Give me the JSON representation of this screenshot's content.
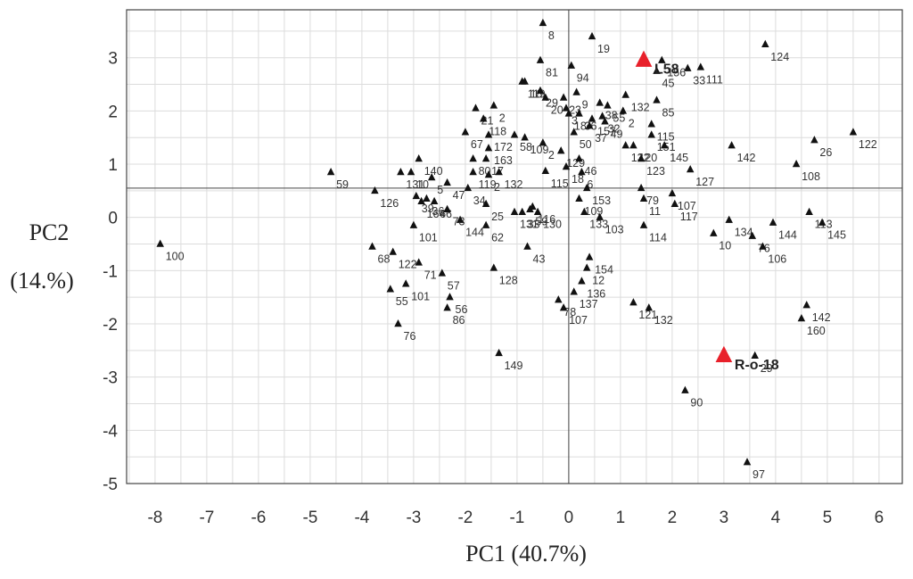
{
  "chart_data": {
    "type": "scatter",
    "title": "",
    "xlabel": "PC1 (40.7%)",
    "ylabel_line1": "PC2",
    "ylabel_line2": "(14.%)",
    "xlim": [
      -8.55,
      6.45
    ],
    "ylim": [
      -5.0,
      3.9
    ],
    "xticks": [
      "-8",
      "-7",
      "-6",
      "-5",
      "-4",
      "-3",
      "-2",
      "-1",
      "0",
      "1",
      "2",
      "3",
      "4",
      "5",
      "6"
    ],
    "yticks": [
      "3",
      "2",
      "1",
      "0",
      "-1",
      "-2",
      "-3",
      "-4",
      "-5"
    ],
    "grid": true,
    "colors": {
      "point": "#111111",
      "highlight": "#e8202a",
      "grid": "#dcdcdc",
      "axis": "#444444"
    },
    "highlighted": [
      {
        "label": "L58",
        "x": 1.45,
        "y": 2.95
      },
      {
        "label": "R-o-18",
        "x": 3.0,
        "y": -2.6
      }
    ],
    "points": [
      {
        "label": "8",
        "x": -0.5,
        "y": 3.65
      },
      {
        "label": "19",
        "x": 0.45,
        "y": 3.4
      },
      {
        "label": "124",
        "x": 3.8,
        "y": 3.25
      },
      {
        "label": "81",
        "x": -0.55,
        "y": 2.95
      },
      {
        "label": "94",
        "x": 0.05,
        "y": 2.85
      },
      {
        "label": "156",
        "x": 1.8,
        "y": 2.95
      },
      {
        "label": "45",
        "x": 1.7,
        "y": 2.75
      },
      {
        "label": "33",
        "x": 2.3,
        "y": 2.8
      },
      {
        "label": "111",
        "x": 2.55,
        "y": 2.82
      },
      {
        "label": "119",
        "x": -0.9,
        "y": 2.55
      },
      {
        "label": "18",
        "x": -0.85,
        "y": 2.55
      },
      {
        "label": "29",
        "x": -0.55,
        "y": 2.38
      },
      {
        "label": "20",
        "x": -0.45,
        "y": 2.25
      },
      {
        "label": "23",
        "x": -0.1,
        "y": 2.25
      },
      {
        "label": "9",
        "x": 0.15,
        "y": 2.35
      },
      {
        "label": "132",
        "x": 1.1,
        "y": 2.3
      },
      {
        "label": "85",
        "x": 1.7,
        "y": 2.2
      },
      {
        "label": "3",
        "x": -0.05,
        "y": 2.05
      },
      {
        "label": "38",
        "x": 0.6,
        "y": 2.15
      },
      {
        "label": "55",
        "x": 0.75,
        "y": 2.1
      },
      {
        "label": "32",
        "x": 0.65,
        "y": 1.9
      },
      {
        "label": "2",
        "x": 1.05,
        "y": 2.0
      },
      {
        "label": "115",
        "x": 1.6,
        "y": 1.75
      },
      {
        "label": "21",
        "x": -1.8,
        "y": 2.05
      },
      {
        "label": "2",
        "x": -1.45,
        "y": 2.1
      },
      {
        "label": "118",
        "x": -1.65,
        "y": 1.85
      },
      {
        "label": "18",
        "x": 0.0,
        "y": 1.95
      },
      {
        "label": "36",
        "x": 0.2,
        "y": 1.95
      },
      {
        "label": "157",
        "x": 0.45,
        "y": 1.85
      },
      {
        "label": "49",
        "x": 0.7,
        "y": 1.8
      },
      {
        "label": "37",
        "x": 0.4,
        "y": 1.72
      },
      {
        "label": "50",
        "x": 0.1,
        "y": 1.6
      },
      {
        "label": "67",
        "x": -2.0,
        "y": 1.6
      },
      {
        "label": "172",
        "x": -1.55,
        "y": 1.55
      },
      {
        "label": "58",
        "x": -1.05,
        "y": 1.55
      },
      {
        "label": "109",
        "x": -0.85,
        "y": 1.5
      },
      {
        "label": "2",
        "x": -0.5,
        "y": 1.4
      },
      {
        "label": "129",
        "x": -0.15,
        "y": 1.25
      },
      {
        "label": "151",
        "x": 1.6,
        "y": 1.55
      },
      {
        "label": "145",
        "x": 1.85,
        "y": 1.35
      },
      {
        "label": "132",
        "x": 1.1,
        "y": 1.35
      },
      {
        "label": "120",
        "x": 1.25,
        "y": 1.35
      },
      {
        "label": "163",
        "x": -1.55,
        "y": 1.3
      },
      {
        "label": "80",
        "x": -1.85,
        "y": 1.1
      },
      {
        "label": "17",
        "x": -1.6,
        "y": 1.1
      },
      {
        "label": "123",
        "x": 1.4,
        "y": 1.1
      },
      {
        "label": "46",
        "x": 0.2,
        "y": 1.1
      },
      {
        "label": "142",
        "x": 3.15,
        "y": 1.35
      },
      {
        "label": "26",
        "x": 4.75,
        "y": 1.45
      },
      {
        "label": "122",
        "x": 5.5,
        "y": 1.6
      },
      {
        "label": "140",
        "x": -2.9,
        "y": 1.1
      },
      {
        "label": "119",
        "x": -1.85,
        "y": 0.85
      },
      {
        "label": "2",
        "x": -1.55,
        "y": 0.8
      },
      {
        "label": "132",
        "x": -1.35,
        "y": 0.85
      },
      {
        "label": "115",
        "x": -0.45,
        "y": 0.87
      },
      {
        "label": "18",
        "x": -0.05,
        "y": 0.95
      },
      {
        "label": "6",
        "x": 0.25,
        "y": 0.85
      },
      {
        "label": "108",
        "x": 4.4,
        "y": 1.0
      },
      {
        "label": "127",
        "x": 2.35,
        "y": 0.9
      },
      {
        "label": "131",
        "x": -3.25,
        "y": 0.85
      },
      {
        "label": "10",
        "x": -3.05,
        "y": 0.85
      },
      {
        "label": "5",
        "x": -2.65,
        "y": 0.75
      },
      {
        "label": "47",
        "x": -2.35,
        "y": 0.65
      },
      {
        "label": "34",
        "x": -1.95,
        "y": 0.55
      },
      {
        "label": "153",
        "x": 0.35,
        "y": 0.55
      },
      {
        "label": "79",
        "x": 1.4,
        "y": 0.55
      },
      {
        "label": "107",
        "x": 2.0,
        "y": 0.45
      },
      {
        "label": "59",
        "x": -4.6,
        "y": 0.85
      },
      {
        "label": "126",
        "x": -3.75,
        "y": 0.5
      },
      {
        "label": "39",
        "x": -2.95,
        "y": 0.4
      },
      {
        "label": "36",
        "x": -2.75,
        "y": 0.35
      },
      {
        "label": "66",
        "x": -2.6,
        "y": 0.3
      },
      {
        "label": "164",
        "x": -2.85,
        "y": 0.3
      },
      {
        "label": "73",
        "x": -2.35,
        "y": 0.15
      },
      {
        "label": "25",
        "x": -1.6,
        "y": 0.25
      },
      {
        "label": "116",
        "x": -0.7,
        "y": 0.2
      },
      {
        "label": "109",
        "x": 0.2,
        "y": 0.35
      },
      {
        "label": "11",
        "x": 1.45,
        "y": 0.35
      },
      {
        "label": "117",
        "x": 2.05,
        "y": 0.25
      },
      {
        "label": "113",
        "x": 4.65,
        "y": 0.1
      },
      {
        "label": "144",
        "x": -2.1,
        "y": -0.05
      },
      {
        "label": "131",
        "x": -1.05,
        "y": 0.1
      },
      {
        "label": "33",
        "x": -0.9,
        "y": 0.1
      },
      {
        "label": "59",
        "x": -0.75,
        "y": 0.15
      },
      {
        "label": "130",
        "x": -0.6,
        "y": 0.1
      },
      {
        "label": "133",
        "x": 0.3,
        "y": 0.1
      },
      {
        "label": "103",
        "x": 0.6,
        "y": 0.0
      },
      {
        "label": "134",
        "x": 3.1,
        "y": -0.05
      },
      {
        "label": "144",
        "x": 3.95,
        "y": -0.1
      },
      {
        "label": "145",
        "x": 4.9,
        "y": -0.1
      },
      {
        "label": "101",
        "x": -3.0,
        "y": -0.15
      },
      {
        "label": "62",
        "x": -1.6,
        "y": -0.15
      },
      {
        "label": "114",
        "x": 1.45,
        "y": -0.15
      },
      {
        "label": "10",
        "x": 2.8,
        "y": -0.3
      },
      {
        "label": "76",
        "x": 3.55,
        "y": -0.35
      },
      {
        "label": "106",
        "x": 3.75,
        "y": -0.55
      },
      {
        "label": "100",
        "x": -7.9,
        "y": -0.5
      },
      {
        "label": "68",
        "x": -3.8,
        "y": -0.55
      },
      {
        "label": "122",
        "x": -3.4,
        "y": -0.65
      },
      {
        "label": "71",
        "x": -2.9,
        "y": -0.85
      },
      {
        "label": "43",
        "x": -0.8,
        "y": -0.55
      },
      {
        "label": "154",
        "x": 0.4,
        "y": -0.75
      },
      {
        "label": "12",
        "x": 0.35,
        "y": -0.95
      },
      {
        "label": "128",
        "x": -1.45,
        "y": -0.95
      },
      {
        "label": "57",
        "x": -2.45,
        "y": -1.05
      },
      {
        "label": "101",
        "x": -3.15,
        "y": -1.25
      },
      {
        "label": "55",
        "x": -3.45,
        "y": -1.35
      },
      {
        "label": "136",
        "x": 0.25,
        "y": -1.2
      },
      {
        "label": "137",
        "x": 0.1,
        "y": -1.4
      },
      {
        "label": "56",
        "x": -2.3,
        "y": -1.5
      },
      {
        "label": "86",
        "x": -2.35,
        "y": -1.7
      },
      {
        "label": "78",
        "x": -0.2,
        "y": -1.55
      },
      {
        "label": "107",
        "x": -0.1,
        "y": -1.7
      },
      {
        "label": "121",
        "x": 1.25,
        "y": -1.6
      },
      {
        "label": "132",
        "x": 1.55,
        "y": -1.7
      },
      {
        "label": "142",
        "x": 4.6,
        "y": -1.65
      },
      {
        "label": "160",
        "x": 4.5,
        "y": -1.9
      },
      {
        "label": "76",
        "x": -3.3,
        "y": -2.0
      },
      {
        "label": "149",
        "x": -1.35,
        "y": -2.55
      },
      {
        "label": "29",
        "x": 3.6,
        "y": -2.6
      },
      {
        "label": "90",
        "x": 2.25,
        "y": -3.25
      },
      {
        "label": "97",
        "x": 3.45,
        "y": -4.6
      }
    ]
  }
}
